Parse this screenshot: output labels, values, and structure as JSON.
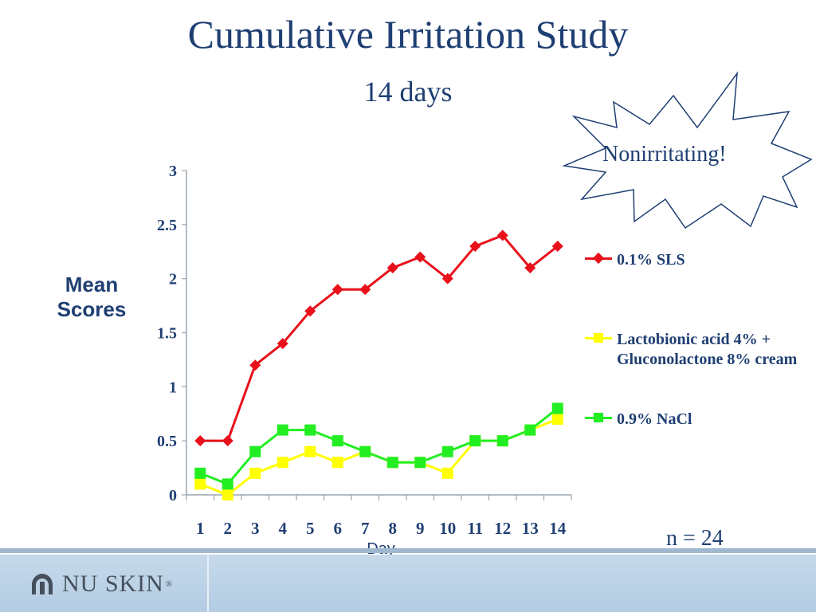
{
  "slide": {
    "title": "Cumulative Irritation Study",
    "subtitle": "14 days",
    "star_text": "Nonirritating!",
    "sample_size": "n = 24",
    "logo_text": "NU SKIN",
    "logo_mark": "®"
  },
  "colors": {
    "title": "#1f3f73",
    "sls": "#e8101a",
    "lacto": "#ffff00",
    "nacl": "#22ee22",
    "footer": "#b9d0e6"
  },
  "chart_data": {
    "type": "line",
    "title": "",
    "ylabel": "Mean Scores",
    "xlabel": "Day",
    "ylim": [
      0,
      3
    ],
    "yticks": [
      "0",
      "0.5",
      "1",
      "1.5",
      "2",
      "2.5",
      "3"
    ],
    "categories": [
      "1",
      "2",
      "3",
      "4",
      "5",
      "6",
      "7",
      "8",
      "9",
      "10",
      "11",
      "12",
      "13",
      "14"
    ],
    "grid": false,
    "legend_position": "right",
    "series": [
      {
        "name": "0.1% SLS",
        "marker": "diamond",
        "color": "#e8101a",
        "values": [
          0.5,
          0.5,
          1.2,
          1.4,
          1.7,
          1.9,
          1.9,
          2.1,
          2.2,
          2.0,
          2.3,
          2.4,
          2.1,
          2.3
        ]
      },
      {
        "name": "Lactobionic acid 4% + Gluconolactone 8% cream",
        "marker": "square",
        "color": "#ffff00",
        "values": [
          0.1,
          0.0,
          0.2,
          0.3,
          0.4,
          0.3,
          0.4,
          0.3,
          0.3,
          0.2,
          0.5,
          0.5,
          0.6,
          0.7
        ]
      },
      {
        "name": "0.9% NaCl",
        "marker": "square",
        "color": "#22ee22",
        "values": [
          0.2,
          0.1,
          0.4,
          0.6,
          0.6,
          0.5,
          0.4,
          0.3,
          0.3,
          0.4,
          0.5,
          0.5,
          0.6,
          0.8
        ]
      }
    ]
  }
}
